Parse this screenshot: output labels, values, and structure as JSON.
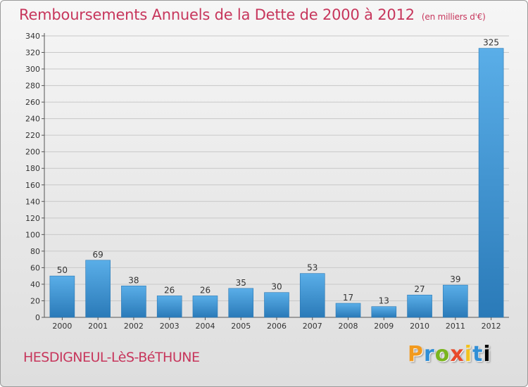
{
  "title": "Remboursements Annuels de la Dette de 2000 à 2012",
  "subtitle": "(en milliers d'€)",
  "commune": "HESDIGNEUL-LèS-BéTHUNE",
  "brand": "Proxiti",
  "colors": {
    "title": "#c7365c",
    "bar_light": "#5aaee8",
    "bar_dark": "#2a7ab8",
    "grid": "#c8c8c8",
    "axis_text": "#333333"
  },
  "chart_data": {
    "type": "bar",
    "title": "Remboursements Annuels de la Dette de 2000 à 2012",
    "xlabel": "",
    "ylabel": "",
    "unit": "en milliers d'€",
    "categories": [
      "2000",
      "2001",
      "2002",
      "2003",
      "2004",
      "2005",
      "2006",
      "2007",
      "2008",
      "2009",
      "2010",
      "2011",
      "2012"
    ],
    "values": [
      50,
      69,
      38,
      26,
      26,
      35,
      30,
      53,
      17,
      13,
      27,
      39,
      325
    ],
    "ylim": [
      0,
      340
    ],
    "ytick_step": 20,
    "grid": true
  }
}
